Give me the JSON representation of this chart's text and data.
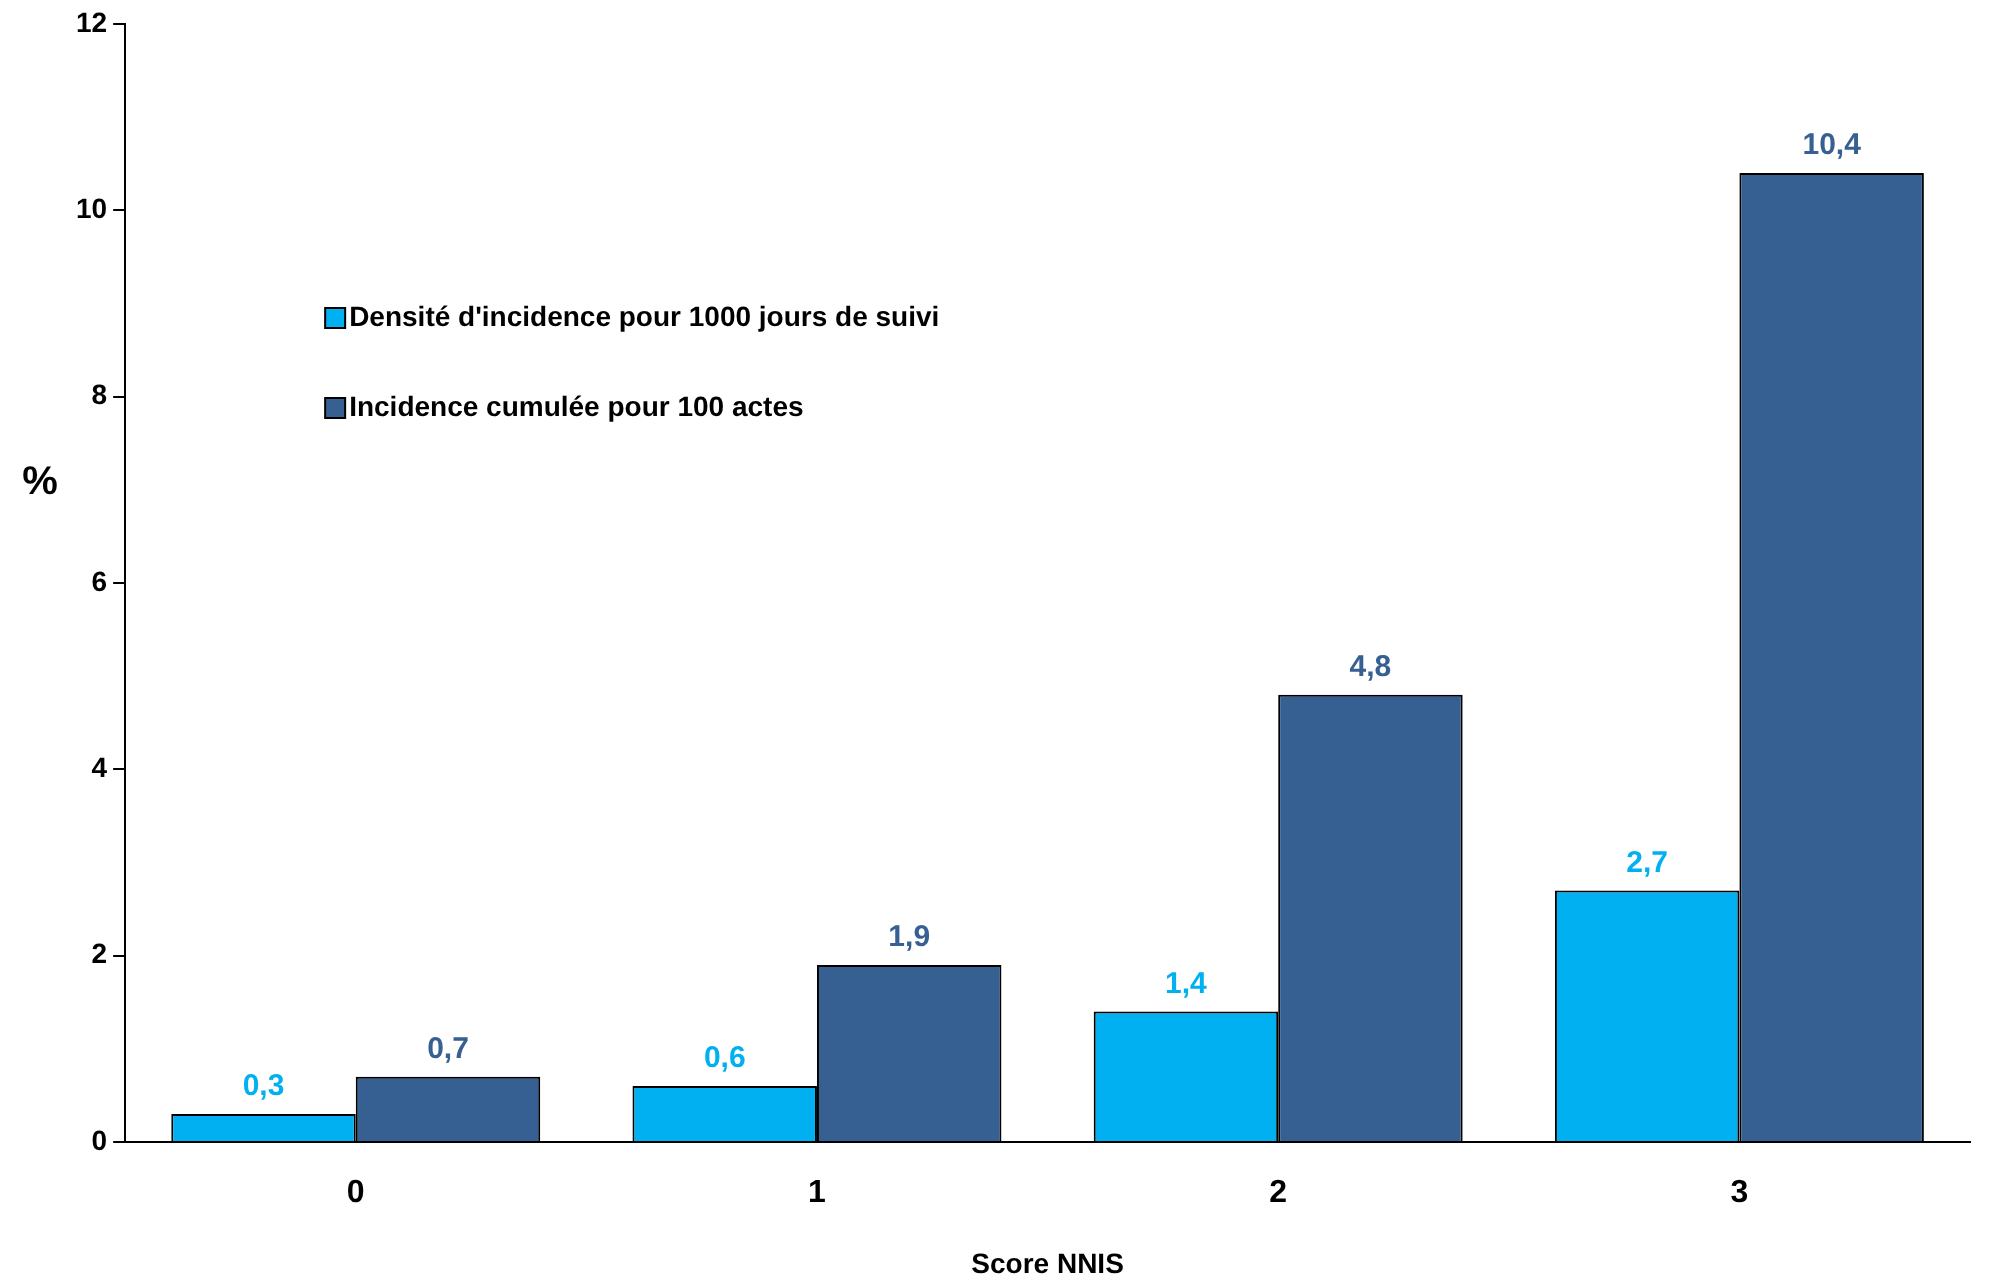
{
  "chart_data": {
    "type": "bar",
    "xlabel": "Score NNIS",
    "ylabel": "%",
    "categories": [
      "0",
      "1",
      "2",
      "3"
    ],
    "series": [
      {
        "name": "Densité d'incidence pour 1000 jours de suivi",
        "color": "#00b0f0",
        "values": [
          0.3,
          0.6,
          1.4,
          2.7
        ],
        "value_labels": [
          "0,3",
          "0,6",
          "1,4",
          "2,7"
        ]
      },
      {
        "name": "Incidence cumulée pour 100 actes",
        "color": "#376092",
        "values": [
          0.7,
          1.9,
          4.8,
          10.4
        ],
        "value_labels": [
          "0,7",
          "1,9",
          "4,8",
          "10,4"
        ]
      }
    ],
    "ylim": [
      0,
      12
    ],
    "yticks": [
      0,
      2,
      4,
      6,
      8,
      10,
      12
    ],
    "grid": false,
    "legend": "top left"
  }
}
